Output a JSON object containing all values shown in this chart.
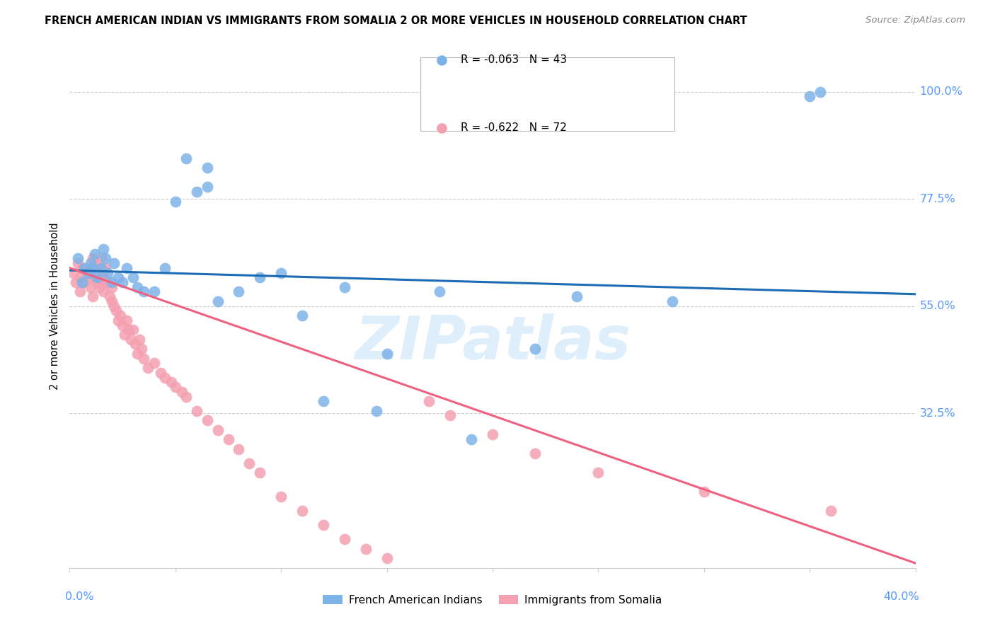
{
  "title": "FRENCH AMERICAN INDIAN VS IMMIGRANTS FROM SOMALIA 2 OR MORE VEHICLES IN HOUSEHOLD CORRELATION CHART",
  "source": "Source: ZipAtlas.com",
  "ylabel": "2 or more Vehicles in Household",
  "ytick_vals": [
    32.5,
    55.0,
    77.5,
    100.0
  ],
  "ytick_labels": [
    "32.5%",
    "55.0%",
    "77.5%",
    "100.0%"
  ],
  "legend1_label": "French American Indians",
  "legend2_label": "Immigrants from Somalia",
  "R1": -0.063,
  "N1": 43,
  "R2": -0.622,
  "N2": 72,
  "blue_color": "#7EB3E8",
  "pink_color": "#F4A0B0",
  "blue_line_color": "#1B6BB5",
  "pink_line_color": "#F06080",
  "watermark": "ZIPatlas",
  "xmin": 0.0,
  "xmax": 40.0,
  "ymin": 0.0,
  "ymax": 110.0,
  "blue_trend_x0": 0.0,
  "blue_trend_x1": 40.0,
  "blue_trend_y0": 62.5,
  "blue_trend_y1": 57.5,
  "pink_trend_x0": 0.0,
  "pink_trend_x1": 40.0,
  "pink_trend_y0": 63.0,
  "pink_trend_y1": 1.0,
  "blue_x": [
    0.4,
    0.6,
    0.7,
    0.9,
    1.0,
    1.1,
    1.2,
    1.3,
    1.5,
    1.6,
    1.7,
    1.8,
    2.0,
    2.1,
    2.3,
    2.5,
    2.7,
    3.0,
    3.2,
    3.5,
    4.0,
    4.5,
    5.0,
    5.5,
    6.0,
    6.5,
    7.0,
    8.0,
    9.0,
    10.0,
    11.0,
    12.0,
    13.0,
    14.5,
    17.5,
    19.0,
    22.0,
    24.0,
    28.5,
    35.0,
    35.5,
    6.5,
    15.0
  ],
  "blue_y": [
    65.0,
    60.0,
    63.0,
    62.0,
    64.0,
    63.0,
    66.0,
    61.0,
    63.0,
    67.0,
    65.0,
    62.0,
    60.0,
    64.0,
    61.0,
    60.0,
    63.0,
    61.0,
    59.0,
    58.0,
    58.0,
    63.0,
    77.0,
    86.0,
    79.0,
    84.0,
    56.0,
    58.0,
    61.0,
    62.0,
    53.0,
    35.0,
    59.0,
    33.0,
    58.0,
    27.0,
    46.0,
    57.0,
    56.0,
    99.0,
    100.0,
    80.0,
    45.0
  ],
  "pink_x": [
    0.2,
    0.3,
    0.4,
    0.5,
    0.5,
    0.6,
    0.7,
    0.8,
    0.9,
    1.0,
    1.0,
    1.1,
    1.1,
    1.2,
    1.2,
    1.3,
    1.3,
    1.4,
    1.4,
    1.5,
    1.5,
    1.6,
    1.6,
    1.7,
    1.7,
    1.8,
    1.9,
    2.0,
    2.0,
    2.1,
    2.2,
    2.3,
    2.4,
    2.5,
    2.6,
    2.7,
    2.8,
    2.9,
    3.0,
    3.1,
    3.2,
    3.3,
    3.4,
    3.5,
    3.7,
    4.0,
    4.3,
    4.5,
    4.8,
    5.0,
    5.3,
    5.5,
    6.0,
    6.5,
    7.0,
    7.5,
    8.0,
    8.5,
    9.0,
    10.0,
    11.0,
    12.0,
    13.0,
    14.0,
    15.0,
    17.0,
    18.0,
    20.0,
    22.0,
    25.0,
    30.0,
    36.0
  ],
  "pink_y": [
    62.0,
    60.0,
    64.0,
    61.0,
    58.0,
    63.0,
    60.0,
    62.0,
    61.0,
    63.0,
    59.0,
    65.0,
    57.0,
    61.0,
    64.0,
    60.0,
    62.0,
    59.0,
    63.0,
    61.0,
    65.0,
    58.0,
    62.0,
    60.0,
    63.0,
    60.0,
    57.0,
    56.0,
    59.0,
    55.0,
    54.0,
    52.0,
    53.0,
    51.0,
    49.0,
    52.0,
    50.0,
    48.0,
    50.0,
    47.0,
    45.0,
    48.0,
    46.0,
    44.0,
    42.0,
    43.0,
    41.0,
    40.0,
    39.0,
    38.0,
    37.0,
    36.0,
    33.0,
    31.0,
    29.0,
    27.0,
    25.0,
    22.0,
    20.0,
    15.0,
    12.0,
    9.0,
    6.0,
    4.0,
    2.0,
    35.0,
    32.0,
    28.0,
    24.0,
    20.0,
    16.0,
    12.0
  ]
}
